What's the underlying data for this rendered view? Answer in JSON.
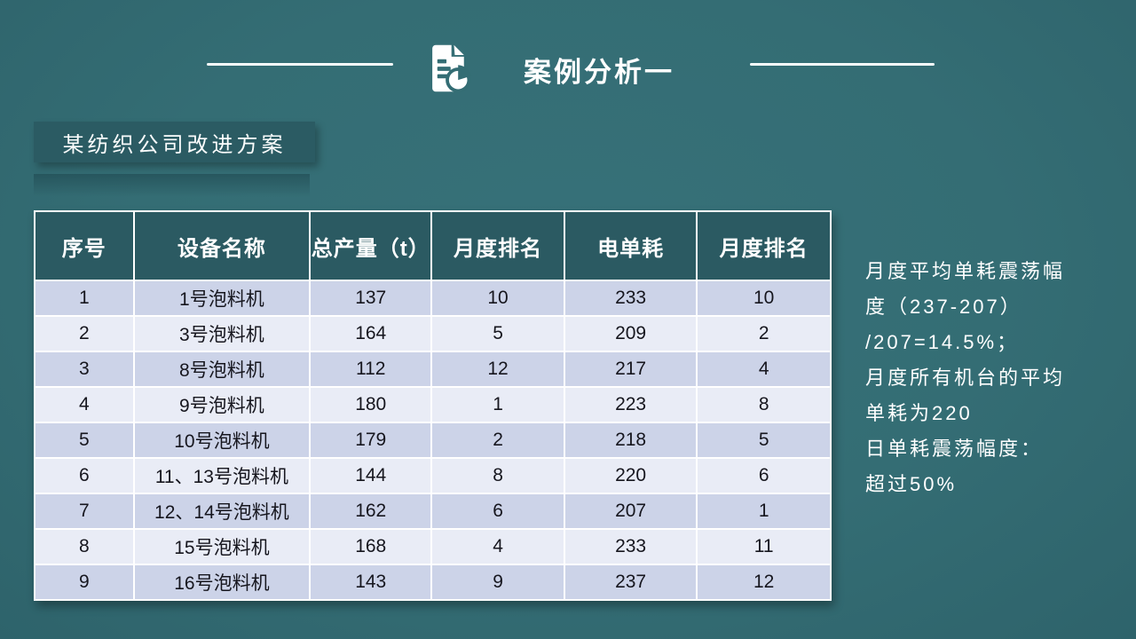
{
  "slide": {
    "title": "案例分析一",
    "subtitle": "某纺织公司改进方案"
  },
  "table": {
    "headers": [
      "序号",
      "设备名称",
      "总产量（t）",
      "月度排名",
      "电单耗",
      "月度排名"
    ],
    "rows": [
      [
        "1",
        "1号泡料机",
        "137",
        "10",
        "233",
        "10"
      ],
      [
        "2",
        "3号泡料机",
        "164",
        "5",
        "209",
        "2"
      ],
      [
        "3",
        "8号泡料机",
        "112",
        "12",
        "217",
        "4"
      ],
      [
        "4",
        "9号泡料机",
        "180",
        "1",
        "223",
        "8"
      ],
      [
        "5",
        "10号泡料机",
        "179",
        "2",
        "218",
        "5"
      ],
      [
        "6",
        "11、13号泡料机",
        "144",
        "8",
        "220",
        "6"
      ],
      [
        "7",
        "12、14号泡料机",
        "162",
        "6",
        "207",
        "1"
      ],
      [
        "8",
        "15号泡料机",
        "168",
        "4",
        "233",
        "11"
      ],
      [
        "9",
        "16号泡料机",
        "143",
        "9",
        "237",
        "12"
      ]
    ]
  },
  "notes": {
    "lines": [
      "月度平均单耗震荡幅",
      "度（237-207）",
      "/207=14.5%；",
      "月度所有机台的平均",
      "单耗为220",
      "日单耗震荡幅度：",
      "超过50%"
    ]
  },
  "icons": {
    "title_icon": "document-pie-chart-icon"
  },
  "colors": {
    "background": "#346D74",
    "panel_dark_teal": "#2B5A62",
    "row_odd": "#CCD3E8",
    "row_even": "#E9ECF6",
    "text_light": "#FFFFFF",
    "text_dark": "#16161E"
  }
}
